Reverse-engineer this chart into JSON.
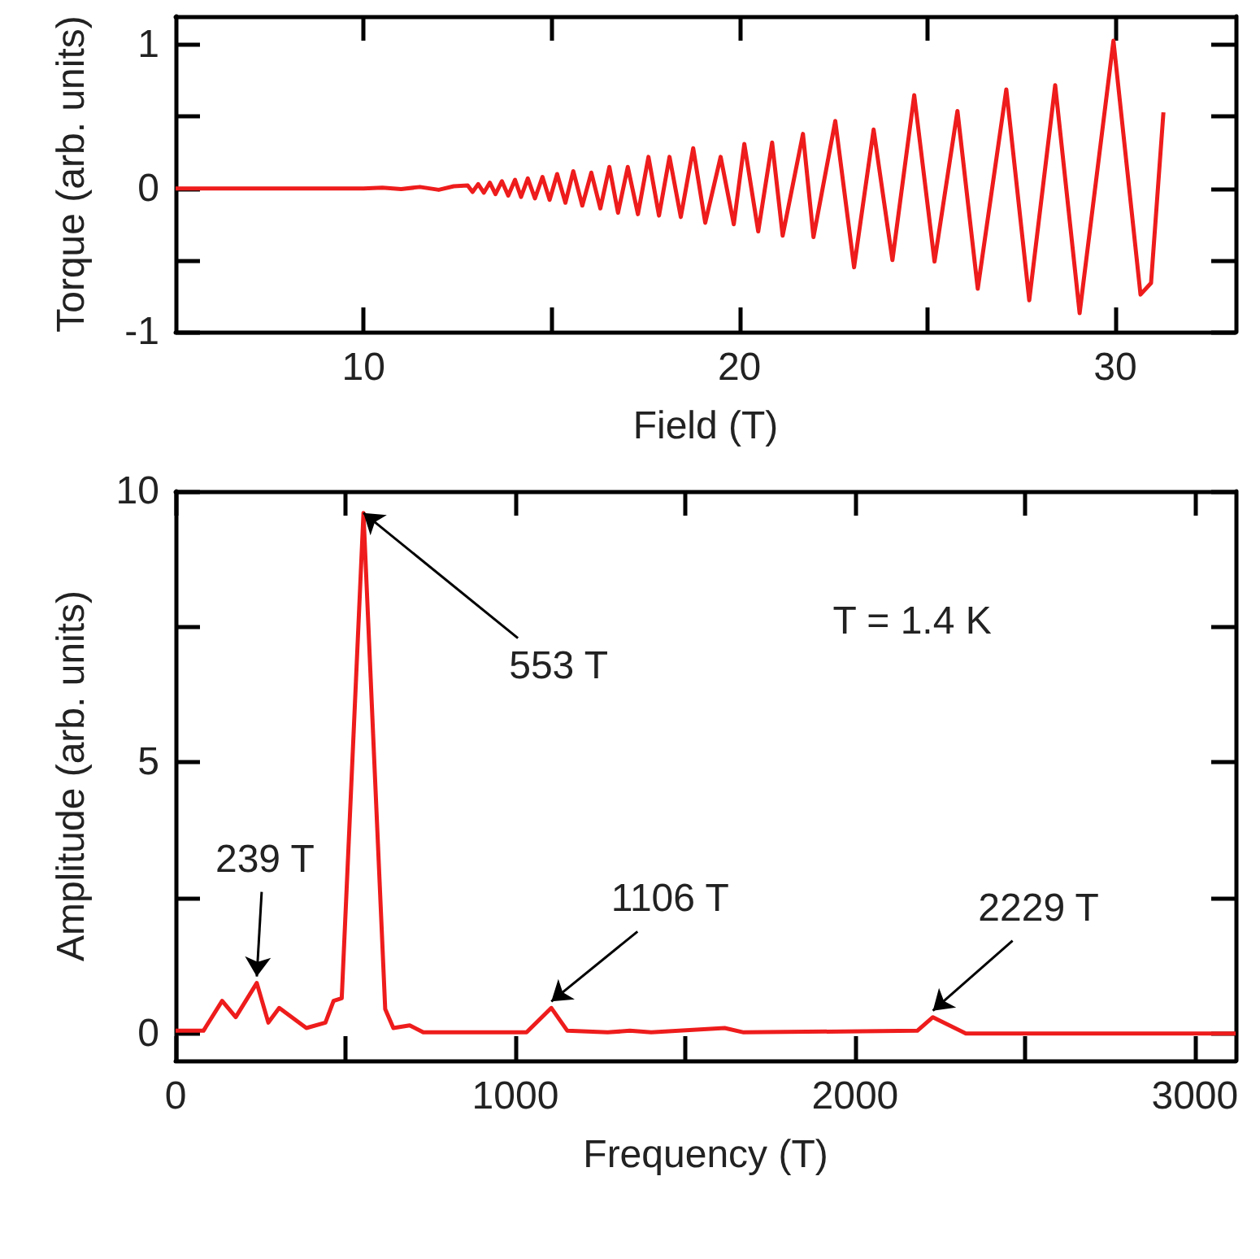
{
  "chart_data": [
    {
      "type": "line",
      "xlabel": "Field (T)",
      "ylabel": "Torque (arb. units)",
      "xlim": [
        5,
        33.2
      ],
      "ylim": [
        -1,
        1.2
      ],
      "xticks": [
        10,
        {
          "value": 15,
          "label": null
        },
        20,
        {
          "value": 25,
          "label": null
        },
        30
      ],
      "yticks": [
        -1,
        {
          "value": -0.5,
          "label": null
        },
        0,
        {
          "value": 0.5,
          "label": null
        },
        1
      ],
      "series": [
        {
          "color": "#ee1c1c",
          "x": [
            5,
            8,
            10,
            10.5,
            11,
            11.5,
            12,
            12.4,
            12.77,
            12.9,
            13.05,
            13.2,
            13.36,
            13.51,
            13.68,
            13.85,
            14.03,
            14.19,
            14.37,
            14.56,
            14.76,
            14.95,
            15.15,
            15.37,
            15.58,
            15.82,
            16.06,
            16.3,
            16.54,
            16.77,
            17.03,
            17.3,
            17.58,
            17.86,
            18.14,
            18.44,
            18.77,
            19.09,
            19.5,
            19.85,
            20.13,
            20.5,
            20.87,
            21.15,
            21.69,
            21.97,
            22.55,
            23.05,
            23.57,
            24.07,
            24.65,
            25.19,
            25.8,
            26.34,
            27.1,
            27.71,
            28.4,
            29.05,
            29.95,
            30.67,
            30.95,
            31.28
          ],
          "values": [
            0,
            0,
            0,
            0.005,
            -0.005,
            0.01,
            -0.01,
            0.015,
            0.02,
            -0.025,
            0.03,
            -0.03,
            0.04,
            -0.04,
            0.05,
            -0.05,
            0.06,
            -0.06,
            0.07,
            -0.07,
            0.08,
            -0.08,
            0.1,
            -0.1,
            0.12,
            -0.12,
            0.11,
            -0.14,
            0.15,
            -0.17,
            0.15,
            -0.18,
            0.22,
            -0.19,
            0.22,
            -0.2,
            0.28,
            -0.24,
            0.22,
            -0.25,
            0.31,
            -0.3,
            0.32,
            -0.33,
            0.38,
            -0.34,
            0.47,
            -0.55,
            0.41,
            -0.5,
            0.65,
            -0.51,
            0.54,
            -0.7,
            0.69,
            -0.78,
            0.72,
            -0.87,
            1.03,
            -0.74,
            -0.66,
            0.53
          ]
        }
      ]
    },
    {
      "type": "line",
      "xlabel": "Frequency (T)",
      "ylabel": "Amplitude (arb. units)",
      "xlim": [
        0,
        3120
      ],
      "ylim": [
        -0.5,
        10
      ],
      "xticks": [
        0,
        {
          "value": 500,
          "label": null
        },
        1000,
        {
          "value": 1500,
          "label": null
        },
        2000,
        {
          "value": 2500,
          "label": null
        },
        3000
      ],
      "yticks": [
        0,
        {
          "value": 2.5,
          "label": null
        },
        5,
        {
          "value": 7.5,
          "label": null
        },
        10
      ],
      "annotations": [
        {
          "text": "239 T",
          "x": 239,
          "y": 0.93
        },
        {
          "text": "553 T",
          "x": 553,
          "y": 9.6
        },
        {
          "text": "1106 T",
          "x": 1106,
          "y": 0.47
        },
        {
          "text": "2229 T",
          "x": 2229,
          "y": 0.3
        },
        "T = 1.4 K"
      ],
      "series": [
        {
          "color": "#ee1c1c",
          "x": [
            0,
            82,
            137,
            177,
            239,
            273,
            305,
            385,
            441,
            465,
            489,
            513,
            553,
            585,
            617,
            641,
            689,
            729,
            1033,
            1106,
            1153,
            1272,
            1337,
            1400,
            1616,
            1672,
            2183,
            2229,
            2326,
            3120
          ],
          "values": [
            0.05,
            0.05,
            0.6,
            0.3,
            0.93,
            0.2,
            0.47,
            0.1,
            0.2,
            0.6,
            0.65,
            4.0,
            9.6,
            5.0,
            0.45,
            0.1,
            0.15,
            0.02,
            0.02,
            0.47,
            0.05,
            0.02,
            0.05,
            0.02,
            0.1,
            0.02,
            0.05,
            0.3,
            0,
            0
          ]
        }
      ]
    }
  ]
}
